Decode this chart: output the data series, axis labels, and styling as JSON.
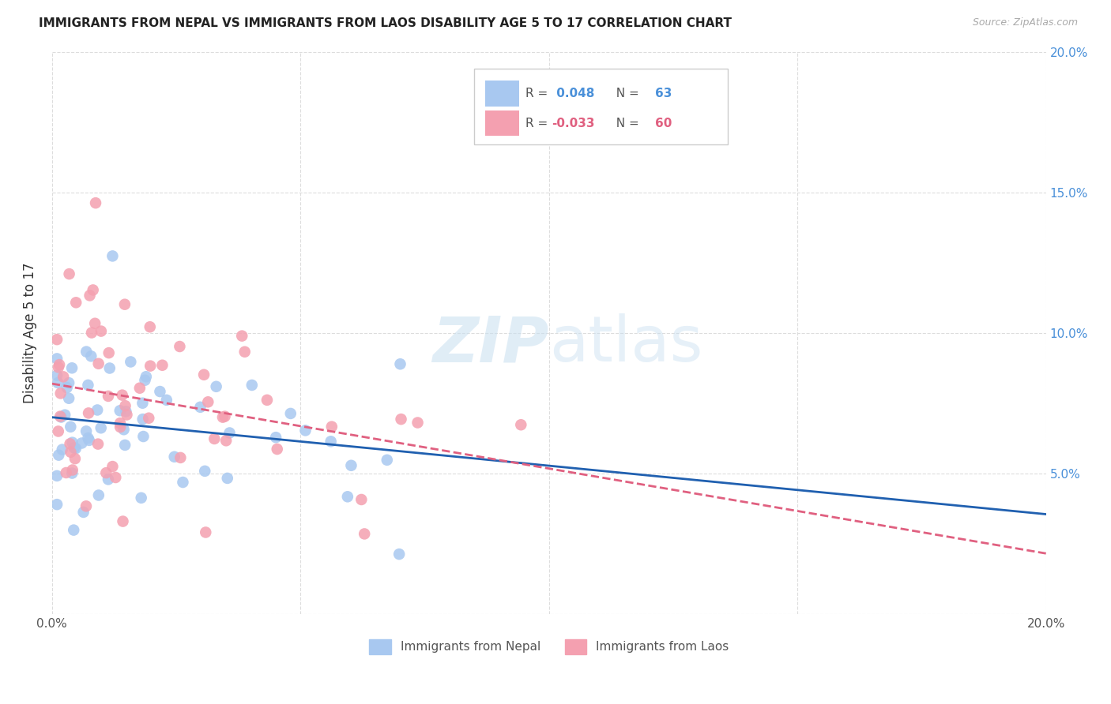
{
  "title": "IMMIGRANTS FROM NEPAL VS IMMIGRANTS FROM LAOS DISABILITY AGE 5 TO 17 CORRELATION CHART",
  "source": "Source: ZipAtlas.com",
  "ylabel": "Disability Age 5 to 17",
  "xlim": [
    0.0,
    0.2
  ],
  "ylim": [
    0.0,
    0.2
  ],
  "ytick_positions": [
    0.0,
    0.05,
    0.1,
    0.15,
    0.2
  ],
  "xtick_positions": [
    0.0,
    0.05,
    0.1,
    0.15,
    0.2
  ],
  "right_ytick_labels": [
    "",
    "5.0%",
    "10.0%",
    "15.0%",
    "20.0%"
  ],
  "xtick_labels": [
    "0.0%",
    "",
    "",
    "",
    "20.0%"
  ],
  "nepal_color": "#a8c8f0",
  "laos_color": "#f4a0b0",
  "nepal_line_color": "#2060b0",
  "laos_line_color": "#e06080",
  "nepal_R": 0.048,
  "nepal_N": 63,
  "laos_R": -0.033,
  "laos_N": 60,
  "watermark": "ZIPatlas",
  "tick_color": "#4a90d9",
  "grid_color": "#dddddd",
  "title_color": "#222222",
  "source_color": "#aaaaaa"
}
